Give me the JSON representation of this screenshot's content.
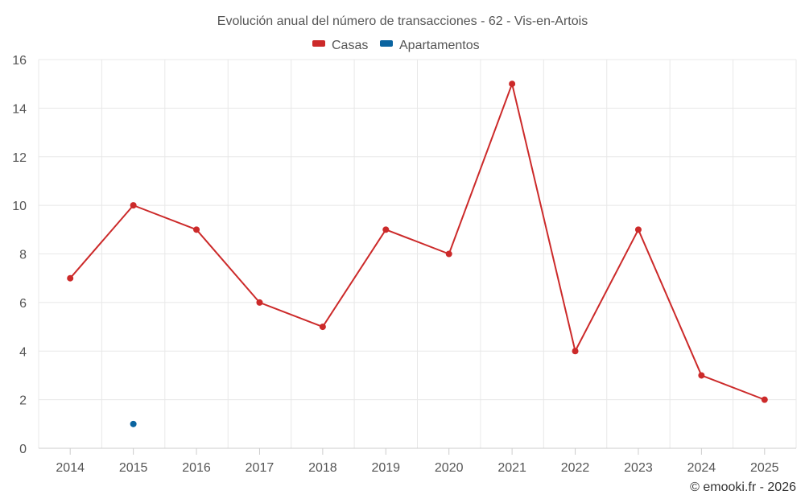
{
  "chart_data": {
    "type": "line",
    "title": "Evolución anual del número de transacciones - 62 - Vis-en-Artois",
    "categories": [
      "2014",
      "2015",
      "2016",
      "2017",
      "2018",
      "2019",
      "2020",
      "2021",
      "2022",
      "2023",
      "2024",
      "2025"
    ],
    "series": [
      {
        "name": "Casas",
        "color": "#cc2a2a",
        "values": [
          7,
          10,
          9,
          6,
          5,
          9,
          8,
          15,
          4,
          9,
          3,
          2
        ]
      },
      {
        "name": "Apartamentos",
        "color": "#0a64a0",
        "values": [
          null,
          1,
          null,
          null,
          null,
          null,
          null,
          null,
          null,
          null,
          null,
          null
        ]
      }
    ],
    "ylim": [
      0,
      16
    ],
    "yticks": [
      0,
      2,
      4,
      6,
      8,
      10,
      12,
      14,
      16
    ],
    "grid": true,
    "legend_position": "top-center"
  },
  "credit": "© emooki.fr - 2026"
}
